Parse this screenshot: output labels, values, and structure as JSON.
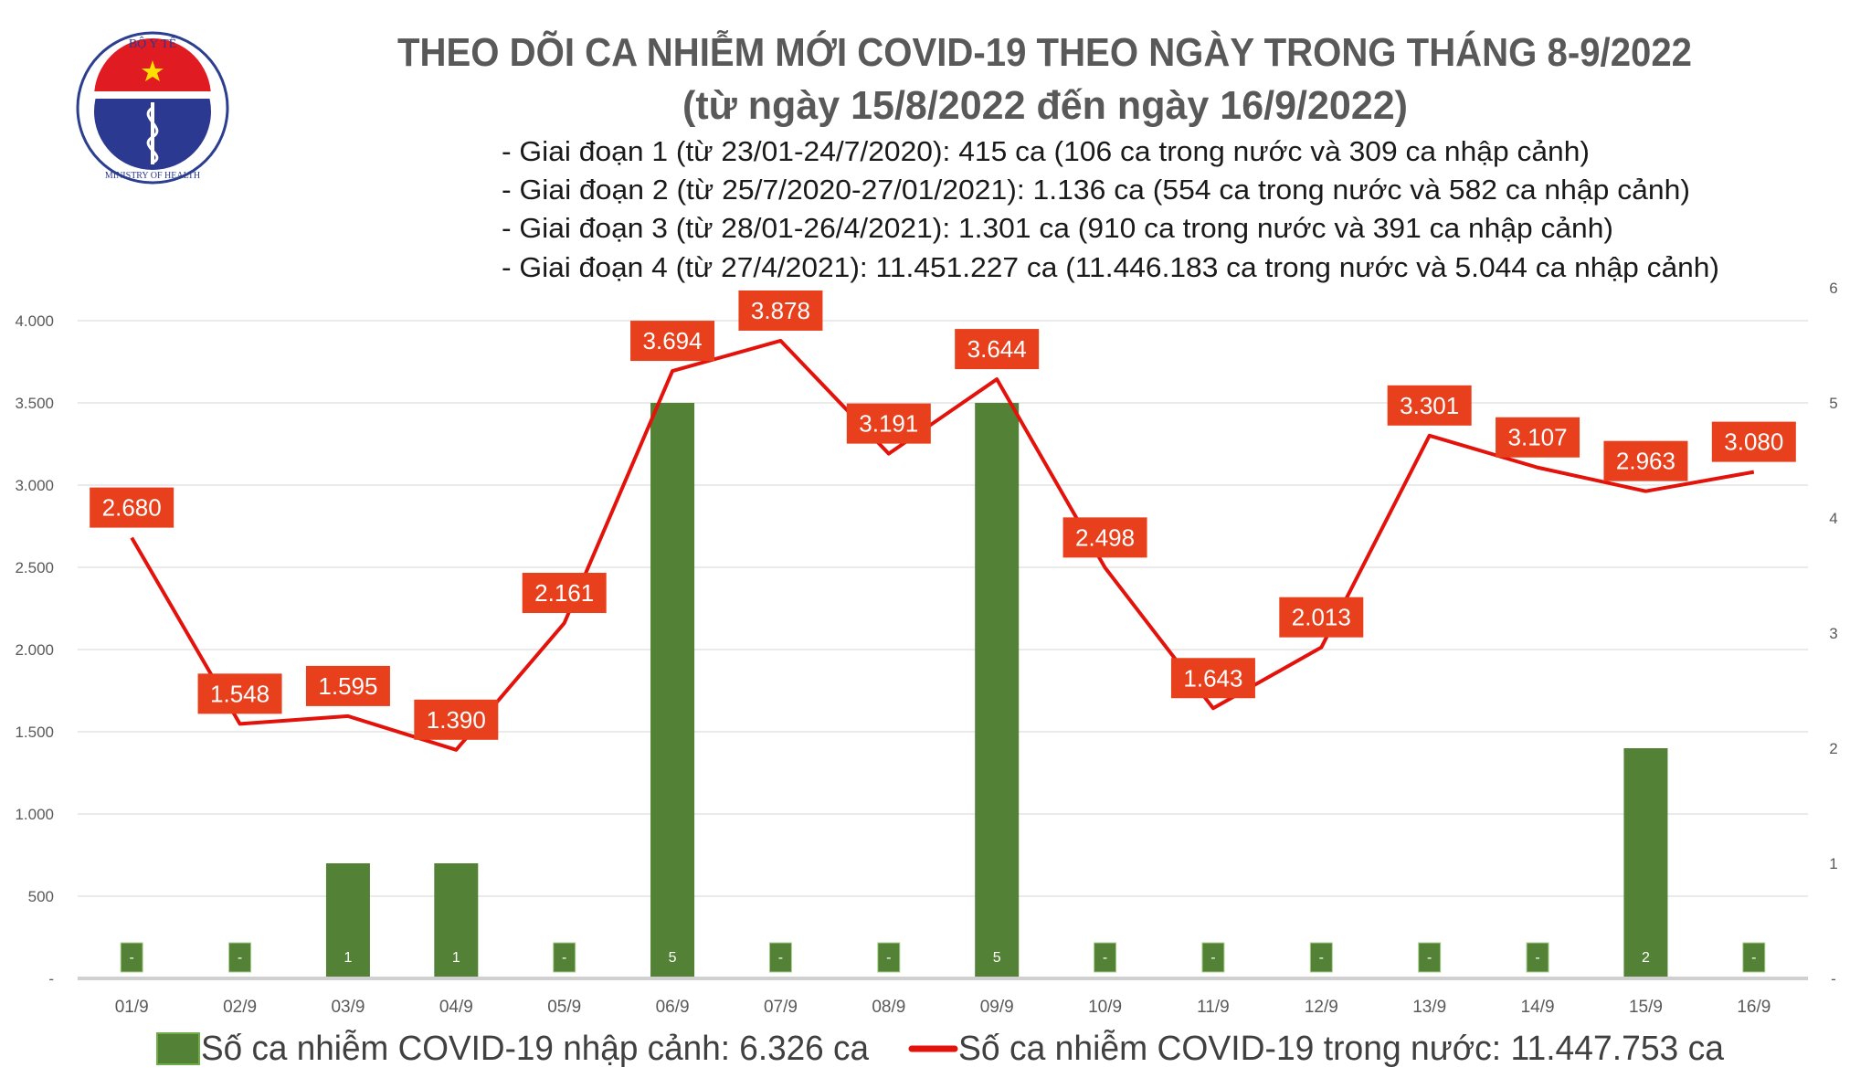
{
  "header": {
    "logo_text_top": "BỘ Y TẾ",
    "logo_text_bottom": "MINISTRY OF HEALTH",
    "title": "THEO DÕI CA NHIỄM MỚI COVID-19 THEO NGÀY TRONG THÁNG 8-9/2022",
    "subtitle": "(từ ngày 15/8/2022 đến ngày 16/9/2022)",
    "notes": [
      "- Giai đoạn 1 (từ 23/01-24/7/2020): 415 ca (106 ca trong nước và 309 ca nhập cảnh)",
      "- Giai đoạn 2 (từ 25/7/2020-27/01/2021): 1.136 ca (554 ca trong nước và 582 ca nhập cảnh)",
      "- Giai đoạn 3 (từ 28/01-26/4/2021): 1.301 ca (910 ca trong nước và 391 ca nhập cảnh)",
      "- Giai đoạn 4 (từ 27/4/2021): 11.451.227 ca (11.446.183 ca trong nước và 5.044 ca nhập cảnh)"
    ]
  },
  "chart_data": {
    "type": "bar+line",
    "categories": [
      "01/9",
      "02/9",
      "03/9",
      "04/9",
      "05/9",
      "06/9",
      "07/9",
      "08/9",
      "09/9",
      "10/9",
      "11/9",
      "12/9",
      "13/9",
      "14/9",
      "15/9",
      "16/9"
    ],
    "series": [
      {
        "name": "Số ca nhiễm COVID-19 nhập cảnh: 6.326 ca",
        "type": "bar",
        "axis": "right",
        "color": "#538135",
        "values": [
          0,
          0,
          1,
          1,
          0,
          5,
          0,
          0,
          5,
          0,
          0,
          0,
          0,
          0,
          2,
          0
        ],
        "labels": [
          "-",
          "-",
          "1",
          "1",
          "-",
          "5",
          "-",
          "-",
          "5",
          "-",
          "-",
          "-",
          "-",
          "-",
          "2",
          "-"
        ]
      },
      {
        "name": "Số ca nhiễm COVID-19 trong nước: 11.447.753 ca",
        "type": "line",
        "axis": "left",
        "color": "#e3120b",
        "label_bg": "#e8401c",
        "values": [
          2680,
          1548,
          1595,
          1390,
          2161,
          3694,
          3878,
          3191,
          3644,
          2498,
          1643,
          2013,
          3301,
          3107,
          2963,
          3080
        ],
        "labels": [
          "2.680",
          "1.548",
          "1.595",
          "1.390",
          "2.161",
          "3.694",
          "3.878",
          "3.191",
          "3.644",
          "2.498",
          "1.643",
          "2.013",
          "3.301",
          "3.107",
          "2.963",
          "3.080"
        ]
      }
    ],
    "y_left": {
      "ylim": [
        0,
        4000
      ],
      "ticks": [
        "-",
        "500",
        "1.000",
        "1.500",
        "2.000",
        "2.500",
        "3.000",
        "3.500",
        "4.000"
      ]
    },
    "y_right": {
      "ylim": [
        0,
        6
      ],
      "ticks": [
        "-",
        "1",
        "2",
        "3",
        "4",
        "5",
        "6"
      ]
    },
    "grid": true,
    "legend_position": "bottom"
  }
}
